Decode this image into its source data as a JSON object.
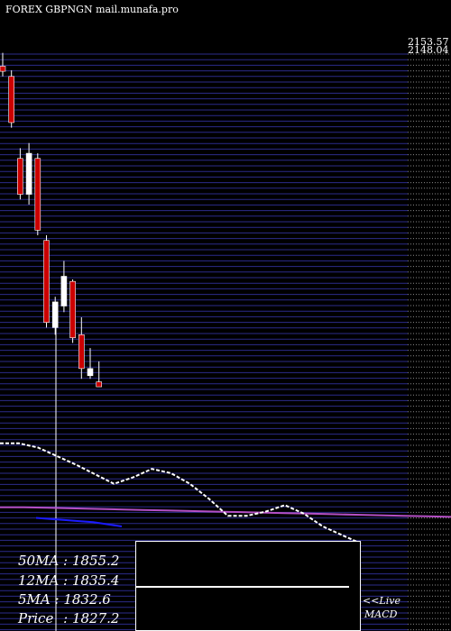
{
  "header": {
    "title": "FOREX  GBPNGN  mail.munafa.pro"
  },
  "price_axis": {
    "top_label_1": "2153.57",
    "top_label_2": "2148.04"
  },
  "moving_averages": [
    {
      "label": "50MA",
      "value": "1855.2"
    },
    {
      "label": "12MA",
      "value": "1835.4"
    },
    {
      "label": "5MA",
      "value": "1832.6"
    },
    {
      "label": "Price",
      "value": "1827.2"
    }
  ],
  "macd_panel": {
    "live_label": "<<Live",
    "name": "MACD"
  },
  "colors": {
    "background": "#000000",
    "grid": "#2b2b8a",
    "up_candle": "#ffffff",
    "down_candle": "#cc0000",
    "ma_fast": "#ffffff",
    "ma_slow": "#b44fc4",
    "ma_mid": "#1a1aff"
  },
  "chart_data": {
    "type": "candlestick",
    "ylim": [
      1800,
      2153.57
    ],
    "candles": [
      {
        "o": 2140,
        "h": 2153,
        "l": 2130,
        "c": 2135
      },
      {
        "o": 2130,
        "h": 2136,
        "l": 2080,
        "c": 2085
      },
      {
        "o": 2050,
        "h": 2060,
        "l": 2010,
        "c": 2015
      },
      {
        "o": 2015,
        "h": 2065,
        "l": 2005,
        "c": 2055
      },
      {
        "o": 2050,
        "h": 2055,
        "l": 1975,
        "c": 1980
      },
      {
        "o": 1970,
        "h": 1975,
        "l": 1885,
        "c": 1890
      },
      {
        "o": 1885,
        "h": 1915,
        "l": 1878,
        "c": 1910
      },
      {
        "o": 1906,
        "h": 1950,
        "l": 1900,
        "c": 1935
      },
      {
        "o": 1930,
        "h": 1932,
        "l": 1870,
        "c": 1875
      },
      {
        "o": 1878,
        "h": 1895,
        "l": 1835,
        "c": 1845
      },
      {
        "o": 1838,
        "h": 1865,
        "l": 1835,
        "c": 1845
      },
      {
        "o": 1832,
        "h": 1852,
        "l": 1830,
        "c": 1827.2
      }
    ],
    "ma_fast": [
      1850,
      1850,
      1846,
      1838,
      1830,
      1821,
      1812,
      1818,
      1826,
      1822,
      1812,
      1798,
      1782,
      1782,
      1786,
      1792,
      1784,
      1772,
      1764,
      1756
    ],
    "ma_slow": [
      1790,
      1790,
      1789.5,
      1789,
      1788.5,
      1788,
      1787.5,
      1787,
      1786.5,
      1786,
      1785.5,
      1785,
      1784.5,
      1784,
      1783.5,
      1783,
      1782.5,
      1782,
      1781.5,
      1781
    ],
    "ma_mid": [
      1780,
      1779,
      1778,
      1777,
      1776,
      1774,
      1772
    ]
  }
}
